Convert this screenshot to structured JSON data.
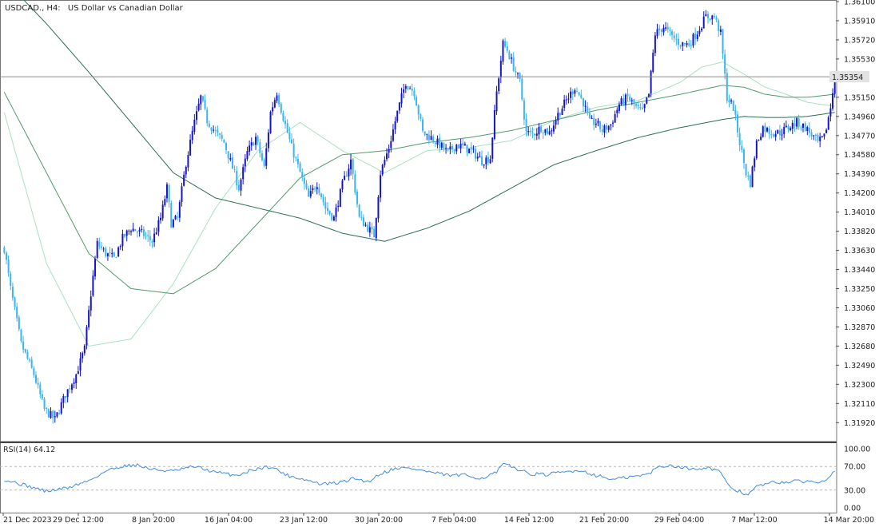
{
  "header": {
    "symbol_label": "USDCAD., H4:",
    "description": "US Dollar vs Canadian Dollar"
  },
  "current_price": "1.35354",
  "colors": {
    "background": "#ffffff",
    "candle_up": "#1515c8",
    "candle_down": "#3cb4ee",
    "ma_fast": "#a8e0c0",
    "ma_mid": "#4f9a6c",
    "ma_slow": "#2a6e50",
    "rsi_line": "#3f8ce0",
    "price_line": "#8c8c8c",
    "axis_text": "#222222",
    "frame": "#777777",
    "price_label_bg": "#e2e2e2"
  },
  "chart_data": [
    {
      "type": "candlestick",
      "timeframe": "H4",
      "price_axis": {
        "min": 1.3174,
        "max": 1.361,
        "ticks": [
          "1.36100",
          "1.35910",
          "1.35720",
          "1.35530",
          "1.35340",
          "1.35150",
          "1.34960",
          "1.34770",
          "1.34580",
          "1.34390",
          "1.34200",
          "1.34010",
          "1.33820",
          "1.33630",
          "1.33440",
          "1.33250",
          "1.33060",
          "1.32870",
          "1.32680",
          "1.32490",
          "1.32300",
          "1.32110",
          "1.31920"
        ]
      },
      "time_axis": {
        "labels": [
          "21 Dec 2023",
          "29 Dec 12:00",
          "8 Jan 20:00",
          "16 Jan 04:00",
          "23 Jan 12:00",
          "30 Jan 20:00",
          "7 Feb 04:00",
          "14 Feb 12:00",
          "21 Feb 20:00",
          "29 Feb 04:00",
          "7 Mar 12:00",
          "14 Mar 20:00"
        ]
      },
      "close_path": [
        [
          0,
          1.3365
        ],
        [
          3,
          1.3325
        ],
        [
          8,
          1.327
        ],
        [
          14,
          1.324
        ],
        [
          19,
          1.3205
        ],
        [
          24,
          1.3195
        ],
        [
          29,
          1.322
        ],
        [
          34,
          1.324
        ],
        [
          38,
          1.3265
        ],
        [
          41,
          1.332
        ],
        [
          44,
          1.337
        ],
        [
          48,
          1.336
        ],
        [
          52,
          1.3355
        ],
        [
          56,
          1.3375
        ],
        [
          60,
          1.3385
        ],
        [
          65,
          1.338
        ],
        [
          70,
          1.3372
        ],
        [
          74,
          1.3395
        ],
        [
          77,
          1.3425
        ],
        [
          79,
          1.339
        ],
        [
          82,
          1.3395
        ],
        [
          86,
          1.345
        ],
        [
          90,
          1.349
        ],
        [
          93,
          1.3515
        ],
        [
          96,
          1.3492
        ],
        [
          100,
          1.348
        ],
        [
          104,
          1.347
        ],
        [
          108,
          1.3445
        ],
        [
          111,
          1.3425
        ],
        [
          115,
          1.346
        ],
        [
          119,
          1.3475
        ],
        [
          123,
          1.3445
        ],
        [
          126,
          1.35
        ],
        [
          129,
          1.352
        ],
        [
          132,
          1.3495
        ],
        [
          136,
          1.3465
        ],
        [
          140,
          1.344
        ],
        [
          144,
          1.3415
        ],
        [
          148,
          1.343
        ],
        [
          152,
          1.3405
        ],
        [
          156,
          1.3395
        ],
        [
          160,
          1.3428
        ],
        [
          164,
          1.3452
        ],
        [
          168,
          1.3395
        ],
        [
          171,
          1.3388
        ],
        [
          175,
          1.3378
        ],
        [
          178,
          1.344
        ],
        [
          182,
          1.3465
        ],
        [
          186,
          1.35
        ],
        [
          190,
          1.353
        ],
        [
          194,
          1.352
        ],
        [
          198,
          1.348
        ],
        [
          202,
          1.3475
        ],
        [
          206,
          1.3468
        ],
        [
          210,
          1.346
        ],
        [
          214,
          1.3468
        ],
        [
          218,
          1.3465
        ],
        [
          222,
          1.346
        ],
        [
          226,
          1.3452
        ],
        [
          230,
          1.3455
        ],
        [
          233,
          1.352
        ],
        [
          236,
          1.3568
        ],
        [
          238,
          1.3562
        ],
        [
          241,
          1.3545
        ],
        [
          244,
          1.353
        ],
        [
          247,
          1.348
        ],
        [
          250,
          1.3478
        ],
        [
          254,
          1.3485
        ],
        [
          258,
          1.348
        ],
        [
          262,
          1.3498
        ],
        [
          266,
          1.3512
        ],
        [
          270,
          1.3525
        ],
        [
          274,
          1.351
        ],
        [
          277,
          1.349
        ],
        [
          280,
          1.349
        ],
        [
          283,
          1.3482
        ],
        [
          287,
          1.3488
        ],
        [
          291,
          1.3508
        ],
        [
          295,
          1.3515
        ],
        [
          299,
          1.3505
        ],
        [
          302,
          1.35
        ],
        [
          305,
          1.3518
        ],
        [
          308,
          1.3578
        ],
        [
          312,
          1.3585
        ],
        [
          316,
          1.3575
        ],
        [
          320,
          1.3568
        ],
        [
          324,
          1.3568
        ],
        [
          328,
          1.358
        ],
        [
          332,
          1.3595
        ],
        [
          336,
          1.3595
        ],
        [
          339,
          1.3578
        ],
        [
          342,
          1.3515
        ],
        [
          345,
          1.3505
        ],
        [
          348,
          1.347
        ],
        [
          351,
          1.344
        ],
        [
          353,
          1.343
        ],
        [
          356,
          1.347
        ],
        [
          359,
          1.3485
        ],
        [
          363,
          1.348
        ],
        [
          367,
          1.348
        ],
        [
          371,
          1.3485
        ],
        [
          375,
          1.349
        ],
        [
          379,
          1.3485
        ],
        [
          382,
          1.3478
        ],
        [
          385,
          1.347
        ],
        [
          388,
          1.3475
        ],
        [
          391,
          1.3505
        ],
        [
          393,
          1.3535
        ]
      ],
      "moving_averages": [
        {
          "color": "#a8e0c0",
          "points": [
            [
              0,
              1.35
            ],
            [
              20,
              1.335
            ],
            [
              40,
              1.3268
            ],
            [
              60,
              1.3275
            ],
            [
              80,
              1.333
            ],
            [
              100,
              1.3405
            ],
            [
              120,
              1.3462
            ],
            [
              140,
              1.349
            ],
            [
              160,
              1.3462
            ],
            [
              180,
              1.344
            ],
            [
              200,
              1.3462
            ],
            [
              220,
              1.3465
            ],
            [
              240,
              1.3472
            ],
            [
              260,
              1.3492
            ],
            [
              280,
              1.3505
            ],
            [
              300,
              1.3512
            ],
            [
              320,
              1.353
            ],
            [
              330,
              1.3545
            ],
            [
              340,
              1.355
            ],
            [
              350,
              1.3538
            ],
            [
              360,
              1.3525
            ],
            [
              370,
              1.3518
            ],
            [
              380,
              1.351
            ],
            [
              393,
              1.3506
            ]
          ]
        },
        {
          "color": "#4f9a6c",
          "points": [
            [
              0,
              1.352
            ],
            [
              20,
              1.344
            ],
            [
              40,
              1.336
            ],
            [
              60,
              1.3325
            ],
            [
              80,
              1.332
            ],
            [
              100,
              1.3345
            ],
            [
              120,
              1.339
            ],
            [
              140,
              1.3435
            ],
            [
              160,
              1.3458
            ],
            [
              180,
              1.3462
            ],
            [
              200,
              1.347
            ],
            [
              220,
              1.3475
            ],
            [
              240,
              1.3482
            ],
            [
              260,
              1.3492
            ],
            [
              280,
              1.3502
            ],
            [
              300,
              1.351
            ],
            [
              320,
              1.3518
            ],
            [
              340,
              1.3527
            ],
            [
              350,
              1.3525
            ],
            [
              360,
              1.3518
            ],
            [
              370,
              1.3515
            ],
            [
              380,
              1.3515
            ],
            [
              393,
              1.3518
            ]
          ]
        },
        {
          "color": "#2a6e50",
          "points": [
            [
              0,
              1.3632
            ],
            [
              20,
              1.3588
            ],
            [
              40,
              1.354
            ],
            [
              60,
              1.349
            ],
            [
              80,
              1.344
            ],
            [
              100,
              1.3415
            ],
            [
              120,
              1.3405
            ],
            [
              140,
              1.3395
            ],
            [
              160,
              1.338
            ],
            [
              180,
              1.3372
            ],
            [
              200,
              1.3385
            ],
            [
              220,
              1.3402
            ],
            [
              240,
              1.3425
            ],
            [
              260,
              1.3448
            ],
            [
              280,
              1.3462
            ],
            [
              300,
              1.3475
            ],
            [
              320,
              1.3485
            ],
            [
              340,
              1.3493
            ],
            [
              350,
              1.3496
            ],
            [
              360,
              1.3495
            ],
            [
              370,
              1.3495
            ],
            [
              380,
              1.3496
            ],
            [
              393,
              1.35
            ]
          ]
        }
      ]
    },
    {
      "type": "line",
      "indicator": "RSI(14)",
      "label": "RSI(14) 64.12",
      "value": 64.12,
      "y_axis": {
        "min": 0,
        "max": 100,
        "ticks": [
          "100.00",
          "70.00",
          "30.00",
          "0.00"
        ]
      },
      "levels": [
        70,
        30
      ],
      "points": [
        [
          0,
          48
        ],
        [
          10,
          38
        ],
        [
          20,
          28
        ],
        [
          30,
          34
        ],
        [
          40,
          46
        ],
        [
          48,
          62
        ],
        [
          55,
          70
        ],
        [
          62,
          73
        ],
        [
          70,
          65
        ],
        [
          80,
          62
        ],
        [
          90,
          70
        ],
        [
          100,
          60
        ],
        [
          110,
          55
        ],
        [
          118,
          65
        ],
        [
          126,
          70
        ],
        [
          134,
          55
        ],
        [
          142,
          48
        ],
        [
          150,
          40
        ],
        [
          158,
          42
        ],
        [
          166,
          50
        ],
        [
          172,
          44
        ],
        [
          178,
          58
        ],
        [
          186,
          68
        ],
        [
          194,
          66
        ],
        [
          202,
          60
        ],
        [
          210,
          55
        ],
        [
          218,
          55
        ],
        [
          226,
          50
        ],
        [
          233,
          60
        ],
        [
          236,
          74
        ],
        [
          242,
          67
        ],
        [
          248,
          58
        ],
        [
          256,
          56
        ],
        [
          264,
          60
        ],
        [
          272,
          64
        ],
        [
          280,
          55
        ],
        [
          288,
          48
        ],
        [
          296,
          52
        ],
        [
          304,
          56
        ],
        [
          310,
          70
        ],
        [
          316,
          72
        ],
        [
          324,
          66
        ],
        [
          332,
          68
        ],
        [
          338,
          64
        ],
        [
          342,
          40
        ],
        [
          346,
          30
        ],
        [
          352,
          22
        ],
        [
          356,
          36
        ],
        [
          362,
          42
        ],
        [
          370,
          44
        ],
        [
          378,
          45
        ],
        [
          386,
          44
        ],
        [
          390,
          52
        ],
        [
          393,
          64
        ]
      ]
    }
  ]
}
